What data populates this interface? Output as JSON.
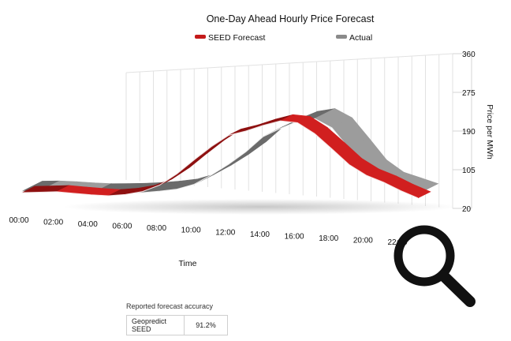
{
  "chart_data": {
    "type": "area",
    "title": "One-Day Ahead Hourly Price Forecast",
    "ylabel": "Price per MWh",
    "xlabel": "Time",
    "ylim": [
      20,
      360
    ],
    "y_ticks": [
      "360",
      "275",
      "190",
      "105",
      "20"
    ],
    "y_tick_values": [
      360,
      275,
      190,
      105,
      20
    ],
    "categories": [
      "00:00",
      "02:00",
      "04:00",
      "06:00",
      "08:00",
      "10:00",
      "12:00",
      "14:00",
      "16:00",
      "18:00",
      "20:00",
      "22:00"
    ],
    "legend_position": "top",
    "grid": true,
    "series": [
      {
        "name": "SEED Forecast",
        "color": "#c41a1a",
        "x": [
          0,
          1,
          2,
          3,
          4,
          5,
          6,
          7,
          8,
          9,
          10,
          11,
          12,
          13,
          14,
          15,
          16,
          17,
          18,
          19,
          20,
          21,
          22,
          23
        ],
        "values": [
          28,
          32,
          36,
          30,
          25,
          22,
          30,
          45,
          75,
          125,
          185,
          240,
          285,
          300,
          320,
          335,
          325,
          280,
          220,
          160,
          120,
          95,
          65,
          40
        ]
      },
      {
        "name": "Actual",
        "color": "#8a8a8a",
        "x": [
          0,
          1,
          2,
          3,
          4,
          5,
          6,
          7,
          8,
          9,
          10,
          11,
          12,
          13,
          14,
          15,
          16,
          17,
          18,
          19,
          20,
          21,
          22,
          23
        ],
        "values": [
          35,
          38,
          36,
          32,
          30,
          32,
          35,
          40,
          48,
          58,
          80,
          120,
          165,
          215,
          275,
          305,
          330,
          338,
          300,
          220,
          140,
          95,
          75,
          55
        ]
      }
    ]
  },
  "accuracy_panel": {
    "caption": "Reported forecast accuracy",
    "rows": [
      {
        "model": "Geopredict SEED",
        "value": "91.2%"
      }
    ]
  },
  "icons": {
    "search": "magnifier-icon"
  }
}
